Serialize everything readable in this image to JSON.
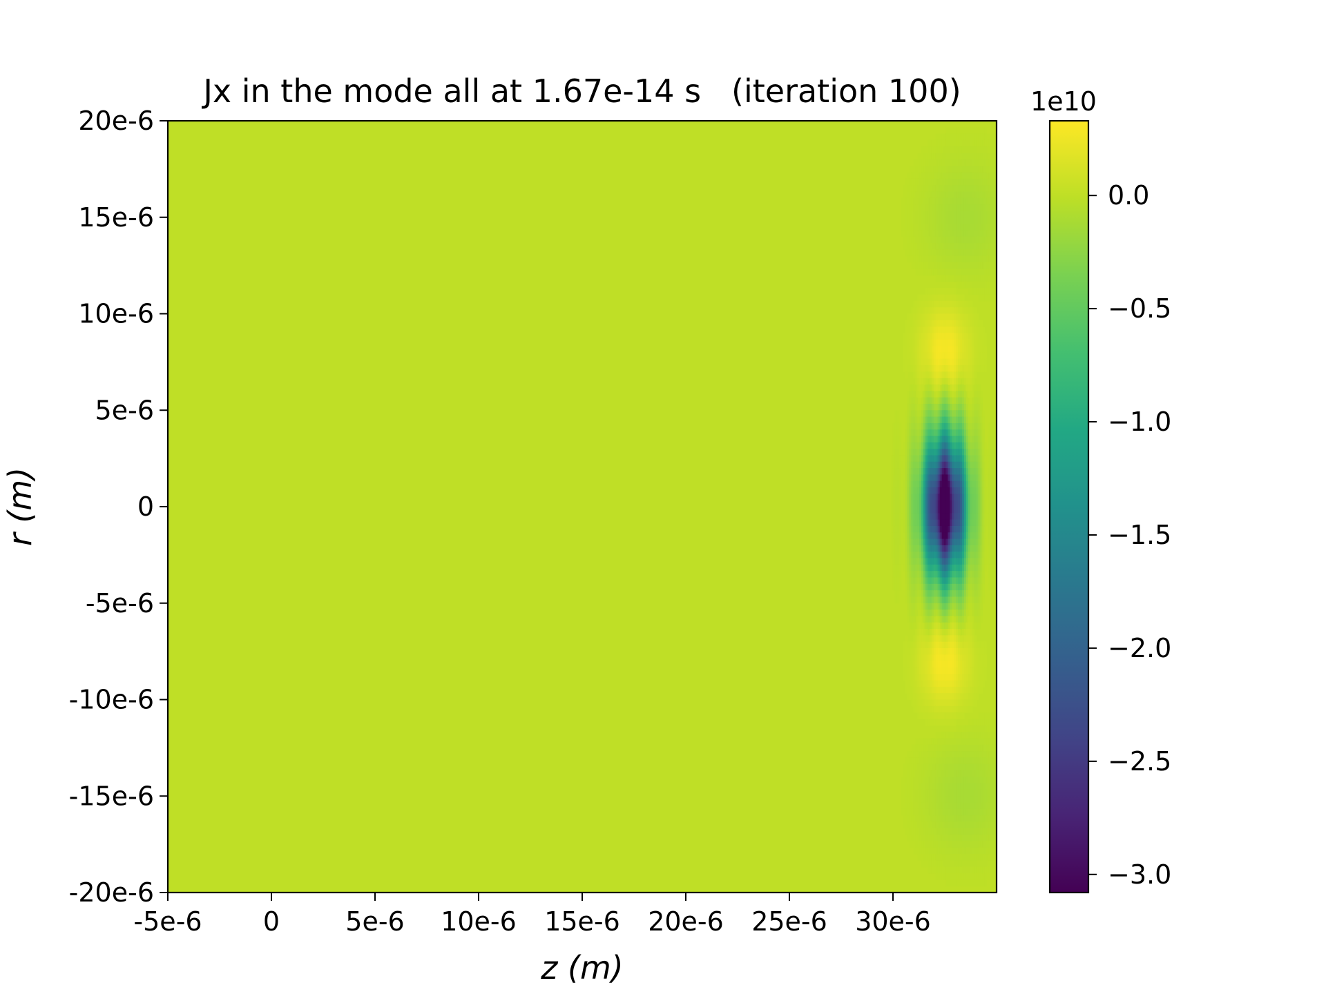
{
  "chart_data": {
    "type": "heatmap",
    "title": "Jx in the mode all at 1.67e-14 s   (iteration 100)",
    "xlabel": "z (m)",
    "ylabel": "r (m)",
    "xlim": [
      -5e-06,
      3.5e-05
    ],
    "ylim": [
      -2e-05,
      2e-05
    ],
    "x_ticks": [
      {
        "value": -5e-06,
        "label": "-5e-6"
      },
      {
        "value": 0,
        "label": "0"
      },
      {
        "value": 5e-06,
        "label": "5e-6"
      },
      {
        "value": 1e-05,
        "label": "10e-6"
      },
      {
        "value": 1.5e-05,
        "label": "15e-6"
      },
      {
        "value": 2e-05,
        "label": "20e-6"
      },
      {
        "value": 2.5e-05,
        "label": "25e-6"
      },
      {
        "value": 3e-05,
        "label": "30e-6"
      }
    ],
    "y_ticks": [
      {
        "value": 2e-05,
        "label": "20e-6"
      },
      {
        "value": 1.5e-05,
        "label": "15e-6"
      },
      {
        "value": 1e-05,
        "label": "10e-6"
      },
      {
        "value": 5e-06,
        "label": "5e-6"
      },
      {
        "value": 0,
        "label": "0"
      },
      {
        "value": -5e-06,
        "label": "-5e-6"
      },
      {
        "value": -1e-05,
        "label": "-10e-6"
      },
      {
        "value": -1.5e-05,
        "label": "-15e-6"
      },
      {
        "value": -2e-05,
        "label": "-20e-6"
      }
    ],
    "colormap": "viridis",
    "colorbar": {
      "multiplier_label": "1e10",
      "vmin": -3.08,
      "vmax": 0.33,
      "ticks": [
        {
          "value": 0.0,
          "label": "0.0"
        },
        {
          "value": -0.5,
          "label": "−0.5"
        },
        {
          "value": -1.0,
          "label": "−1.0"
        },
        {
          "value": -1.5,
          "label": "−1.5"
        },
        {
          "value": -2.0,
          "label": "−2.0"
        },
        {
          "value": -2.5,
          "label": "−2.5"
        },
        {
          "value": -3.0,
          "label": "−3.0"
        }
      ]
    },
    "field": {
      "description_units": "1e10",
      "background_value": 0.0,
      "pulse_center_z": 3.25e-05,
      "pulse_z_start": 3.05e-05,
      "min_value": -3.08,
      "max_value": 0.33,
      "lobe_r_positions": [
        8e-06,
        -8e-06
      ]
    }
  }
}
